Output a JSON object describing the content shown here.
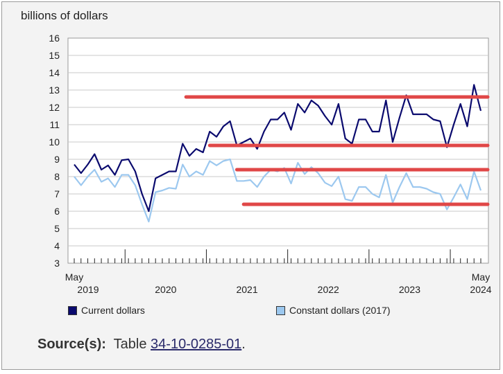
{
  "chart_data": {
    "type": "line",
    "ylabel": "billions of dollars",
    "ylim": [
      3,
      16
    ],
    "yticks": [
      "3",
      "4",
      "5",
      "6",
      "7",
      "8",
      "9",
      "10",
      "11",
      "12",
      "13",
      "14",
      "15",
      "16"
    ],
    "xstart": "2019-05",
    "xend": "2024-05",
    "xticklabels": [
      {
        "top": "May",
        "bottom": "2019",
        "at": 0
      },
      {
        "top": "",
        "bottom": "2020",
        "at": 12
      },
      {
        "top": "",
        "bottom": "2021",
        "at": 24
      },
      {
        "top": "",
        "bottom": "2022",
        "at": 36
      },
      {
        "top": "",
        "bottom": "2023",
        "at": 48
      },
      {
        "top": "May",
        "bottom": "2024",
        "at": 60
      }
    ],
    "series": [
      {
        "name": "Current dollars",
        "color": "#0a0a6e",
        "values": [
          8.7,
          8.2,
          8.7,
          9.3,
          8.4,
          8.65,
          8.1,
          8.95,
          9.0,
          8.3,
          7.0,
          6.0,
          7.9,
          8.1,
          8.3,
          8.3,
          9.9,
          9.2,
          9.6,
          9.4,
          10.6,
          10.3,
          10.9,
          11.2,
          9.8,
          10.0,
          10.2,
          9.6,
          10.6,
          11.3,
          11.3,
          11.7,
          10.7,
          12.2,
          11.7,
          12.4,
          12.1,
          11.5,
          11.0,
          12.2,
          10.2,
          9.9,
          11.3,
          11.3,
          10.6,
          10.6,
          12.4,
          10.0,
          11.4,
          12.7,
          11.6,
          11.6,
          11.6,
          11.3,
          11.2,
          9.7,
          11.0,
          12.2,
          10.9,
          13.3,
          11.8
        ]
      },
      {
        "name": "Constant dollars (2017)",
        "color": "#9cc8ef",
        "values": [
          8.0,
          7.5,
          8.0,
          8.4,
          7.7,
          7.9,
          7.4,
          8.1,
          8.1,
          7.5,
          6.4,
          5.4,
          7.1,
          7.2,
          7.35,
          7.3,
          8.7,
          8.0,
          8.3,
          8.1,
          8.9,
          8.65,
          8.9,
          9.0,
          7.75,
          7.75,
          7.8,
          7.4,
          8.0,
          8.4,
          8.3,
          8.5,
          7.6,
          8.8,
          8.15,
          8.55,
          8.2,
          7.65,
          7.45,
          8.0,
          6.7,
          6.6,
          7.4,
          7.4,
          7.0,
          6.8,
          8.1,
          6.5,
          7.4,
          8.2,
          7.4,
          7.4,
          7.3,
          7.1,
          7.0,
          6.1,
          6.8,
          7.55,
          6.7,
          8.3,
          7.2
        ]
      }
    ],
    "annotations": [
      {
        "x_start": 16.5,
        "x_end": 60,
        "y": 12.6
      },
      {
        "x_start": 20,
        "x_end": 60,
        "y": 9.8
      },
      {
        "x_start": 24,
        "x_end": 60,
        "y": 8.4
      },
      {
        "x_start": 25,
        "x_end": 60,
        "y": 6.4
      }
    ],
    "annotation_color": "#e04747",
    "grid": true,
    "legend_position": "bottom"
  },
  "legend": {
    "current_label": "Current dollars",
    "constant_label": "Constant dollars (2017)"
  },
  "source": {
    "label": "Source(s):",
    "prefix": "Table ",
    "link": "34-10-0285-01",
    "suffix": "."
  }
}
